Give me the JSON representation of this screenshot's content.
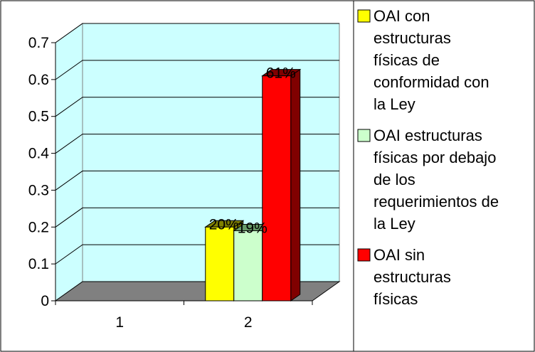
{
  "chart_data": {
    "type": "bar",
    "categories": [
      "1",
      "2"
    ],
    "series": [
      {
        "name": "OAI con estructuras físicas de conformidad con la Ley",
        "values": [
          null,
          0.2
        ],
        "labels": [
          "",
          "20%"
        ],
        "color": "#FFFF00",
        "side_color": "#808000"
      },
      {
        "name": "OAI estructuras físicas por debajo de los requerimientos de la Ley",
        "values": [
          null,
          0.19
        ],
        "labels": [
          "",
          "19%"
        ],
        "color": "#CCFFCC",
        "side_color": "#669966"
      },
      {
        "name": "OAI sin estructuras físicas",
        "values": [
          null,
          0.61
        ],
        "labels": [
          "",
          "61%"
        ],
        "color": "#FF0000",
        "side_color": "#800000"
      }
    ],
    "y_ticks": [
      "0",
      "0.1",
      "0.2",
      "0.3",
      "0.4",
      "0.5",
      "0.6",
      "0.7"
    ],
    "ylim": [
      0,
      0.7
    ],
    "grid": true,
    "wall_color": "#CCFFFF",
    "floor_color": "#808080",
    "legend_position": "right"
  }
}
